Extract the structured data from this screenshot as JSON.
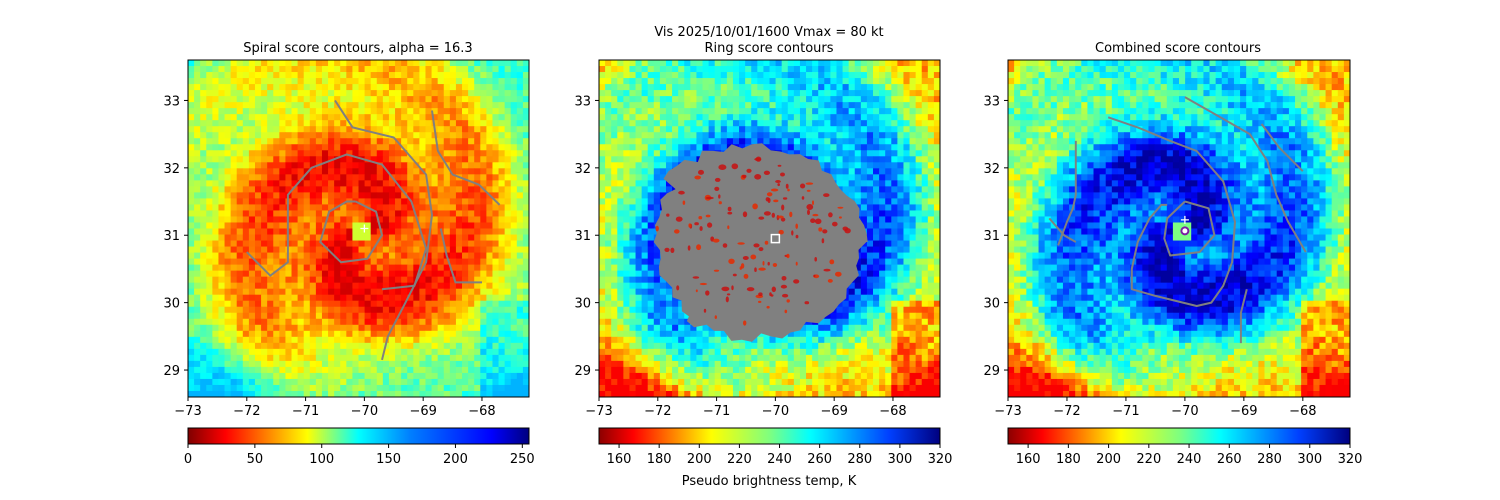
{
  "suptitle": "Vis  2025/10/01/1600    Vmax = 80 kt",
  "colors": {
    "contour": "#808080",
    "marker_white": "#ffffff",
    "marker_purple": "#7a1fa2"
  },
  "chart_data": [
    {
      "type": "heatmap",
      "title": "Spiral score contours, alpha = 16.3",
      "xlim": [
        -73,
        -67.2
      ],
      "ylim": [
        28.6,
        33.6
      ],
      "xticks": [
        -73,
        -72,
        -71,
        -70,
        -69,
        -68
      ],
      "yticks": [
        29,
        30,
        31,
        32,
        33
      ],
      "xtick_labels": [
        "−73",
        "−72",
        "−71",
        "−70",
        "−69",
        "−68"
      ],
      "ytick_labels": [
        "29",
        "30",
        "31",
        "32",
        "33"
      ],
      "colormap": "jet",
      "colorbar": {
        "range": [
          0,
          255
        ],
        "ticks": [
          0,
          50,
          100,
          150,
          200,
          250
        ],
        "tick_labels": [
          "0",
          "50",
          "100",
          "150",
          "200",
          "250"
        ],
        "reversed": false,
        "label": ""
      },
      "field": {
        "center": [
          -70.05,
          31.05
        ],
        "eye_value": 0.35,
        "bg_value": 0.55
      },
      "marker": {
        "shape": "plus",
        "lon": -70.0,
        "lat": 31.1
      },
      "contours": [
        [
          [
            -70.15,
            31.5
          ],
          [
            -69.8,
            31.35
          ],
          [
            -69.7,
            31.0
          ],
          [
            -69.95,
            30.65
          ],
          [
            -70.4,
            30.6
          ],
          [
            -70.75,
            30.9
          ],
          [
            -70.6,
            31.35
          ],
          [
            -70.3,
            31.5
          ],
          [
            -70.15,
            31.5
          ]
        ],
        [
          [
            -72.0,
            30.75
          ],
          [
            -71.6,
            30.4
          ],
          [
            -71.3,
            30.6
          ],
          [
            -71.3,
            31.6
          ],
          [
            -70.9,
            32.0
          ],
          [
            -70.3,
            32.2
          ],
          [
            -69.7,
            32.05
          ],
          [
            -69.2,
            31.5
          ],
          [
            -68.95,
            30.8
          ],
          [
            -69.15,
            30.25
          ],
          [
            -69.7,
            30.2
          ]
        ],
        [
          [
            -70.5,
            33.0
          ],
          [
            -70.2,
            32.6
          ],
          [
            -69.5,
            32.45
          ],
          [
            -68.95,
            31.9
          ],
          [
            -68.85,
            31.3
          ],
          [
            -68.95,
            30.6
          ],
          [
            -69.3,
            30.0
          ],
          [
            -69.6,
            29.5
          ],
          [
            -69.7,
            29.15
          ]
        ],
        [
          [
            -68.85,
            32.85
          ],
          [
            -68.75,
            32.25
          ],
          [
            -68.5,
            31.9
          ],
          [
            -68.05,
            31.75
          ],
          [
            -67.7,
            31.45
          ]
        ],
        [
          [
            -68.7,
            31.1
          ],
          [
            -68.6,
            30.7
          ],
          [
            -68.45,
            30.3
          ],
          [
            -68.0,
            30.3
          ]
        ]
      ]
    },
    {
      "type": "heatmap",
      "title": "Ring score contours",
      "xlim": [
        -73,
        -67.2
      ],
      "ylim": [
        28.6,
        33.6
      ],
      "xticks": [
        -73,
        -72,
        -71,
        -70,
        -69,
        -68
      ],
      "yticks": [
        29,
        30,
        31,
        32,
        33
      ],
      "xtick_labels": [
        "−73",
        "−72",
        "−71",
        "−70",
        "−69",
        "−68"
      ],
      "ytick_labels": [
        "29",
        "30",
        "31",
        "32",
        "33"
      ],
      "colormap": "jet_r",
      "colorbar": {
        "range": [
          150,
          320
        ],
        "ticks": [
          160,
          180,
          200,
          220,
          240,
          260,
          280,
          300,
          320
        ],
        "tick_labels": [
          "160",
          "180",
          "200",
          "220",
          "240",
          "260",
          "280",
          "300",
          "320"
        ],
        "reversed": true,
        "label": "Pseudo brightness temp, K"
      },
      "field": {
        "center": [
          -70.05,
          31.05
        ],
        "eye_value": 0.6,
        "bg_value": 0.45
      },
      "blob": {
        "center": [
          -70.4,
          30.9
        ],
        "radius_lon": 1.95,
        "radius_lat": 1.45
      },
      "marker": {
        "shape": "square",
        "lon": -70.0,
        "lat": 30.95
      },
      "contours": []
    },
    {
      "type": "heatmap",
      "title": "Combined score contours",
      "xlim": [
        -73,
        -67.2
      ],
      "ylim": [
        28.6,
        33.6
      ],
      "xticks": [
        -73,
        -72,
        -71,
        -70,
        -69,
        -68
      ],
      "yticks": [
        29,
        30,
        31,
        32,
        33
      ],
      "xtick_labels": [
        "−73",
        "−72",
        "−71",
        "−70",
        "−69",
        "−68"
      ],
      "ytick_labels": [
        "29",
        "30",
        "31",
        "32",
        "33"
      ],
      "colormap": "jet_r",
      "colorbar": {
        "range": [
          150,
          320
        ],
        "ticks": [
          160,
          180,
          200,
          220,
          240,
          260,
          280,
          300,
          320
        ],
        "tick_labels": [
          "160",
          "180",
          "200",
          "220",
          "240",
          "260",
          "280",
          "300",
          "320"
        ],
        "reversed": true,
        "label": ""
      },
      "field": {
        "center": [
          -70.05,
          31.05
        ],
        "eye_value": 0.6,
        "bg_value": 0.45
      },
      "marker": {
        "shape": "plus+circle",
        "lon": -70.0,
        "lat": 31.05
      },
      "contours": [
        [
          [
            -70.0,
            31.5
          ],
          [
            -69.6,
            31.4
          ],
          [
            -69.5,
            31.0
          ],
          [
            -69.75,
            30.75
          ],
          [
            -70.25,
            30.7
          ],
          [
            -70.35,
            30.95
          ],
          [
            -70.3,
            31.25
          ],
          [
            -70.0,
            31.5
          ]
        ],
        [
          [
            -72.15,
            30.85
          ],
          [
            -72.0,
            31.2
          ],
          [
            -71.9,
            31.4
          ],
          [
            -71.85,
            31.6
          ],
          [
            -71.85,
            32.4
          ]
        ],
        [
          [
            -72.3,
            31.25
          ],
          [
            -72.05,
            31.0
          ],
          [
            -71.85,
            30.9
          ]
        ],
        [
          [
            -71.3,
            32.75
          ],
          [
            -70.8,
            32.6
          ],
          [
            -70.25,
            32.4
          ],
          [
            -69.8,
            32.25
          ],
          [
            -69.35,
            31.8
          ],
          [
            -69.15,
            31.2
          ],
          [
            -69.2,
            30.6
          ],
          [
            -69.35,
            30.25
          ],
          [
            -69.55,
            30.0
          ],
          [
            -69.8,
            29.95
          ],
          [
            -70.5,
            30.1
          ],
          [
            -70.9,
            30.2
          ],
          [
            -70.9,
            30.5
          ],
          [
            -70.8,
            30.9
          ],
          [
            -70.6,
            31.25
          ],
          [
            -70.4,
            31.45
          ],
          [
            -70.3,
            31.45
          ]
        ],
        [
          [
            -70.0,
            33.05
          ],
          [
            -69.5,
            32.8
          ],
          [
            -68.9,
            32.5
          ],
          [
            -68.6,
            32.1
          ],
          [
            -68.45,
            31.6
          ],
          [
            -68.25,
            31.2
          ],
          [
            -67.95,
            30.75
          ]
        ],
        [
          [
            -68.7,
            32.65
          ],
          [
            -68.4,
            32.3
          ],
          [
            -68.0,
            31.95
          ]
        ],
        [
          [
            -69.05,
            29.4
          ],
          [
            -69.05,
            29.85
          ],
          [
            -68.95,
            30.2
          ]
        ]
      ]
    }
  ]
}
